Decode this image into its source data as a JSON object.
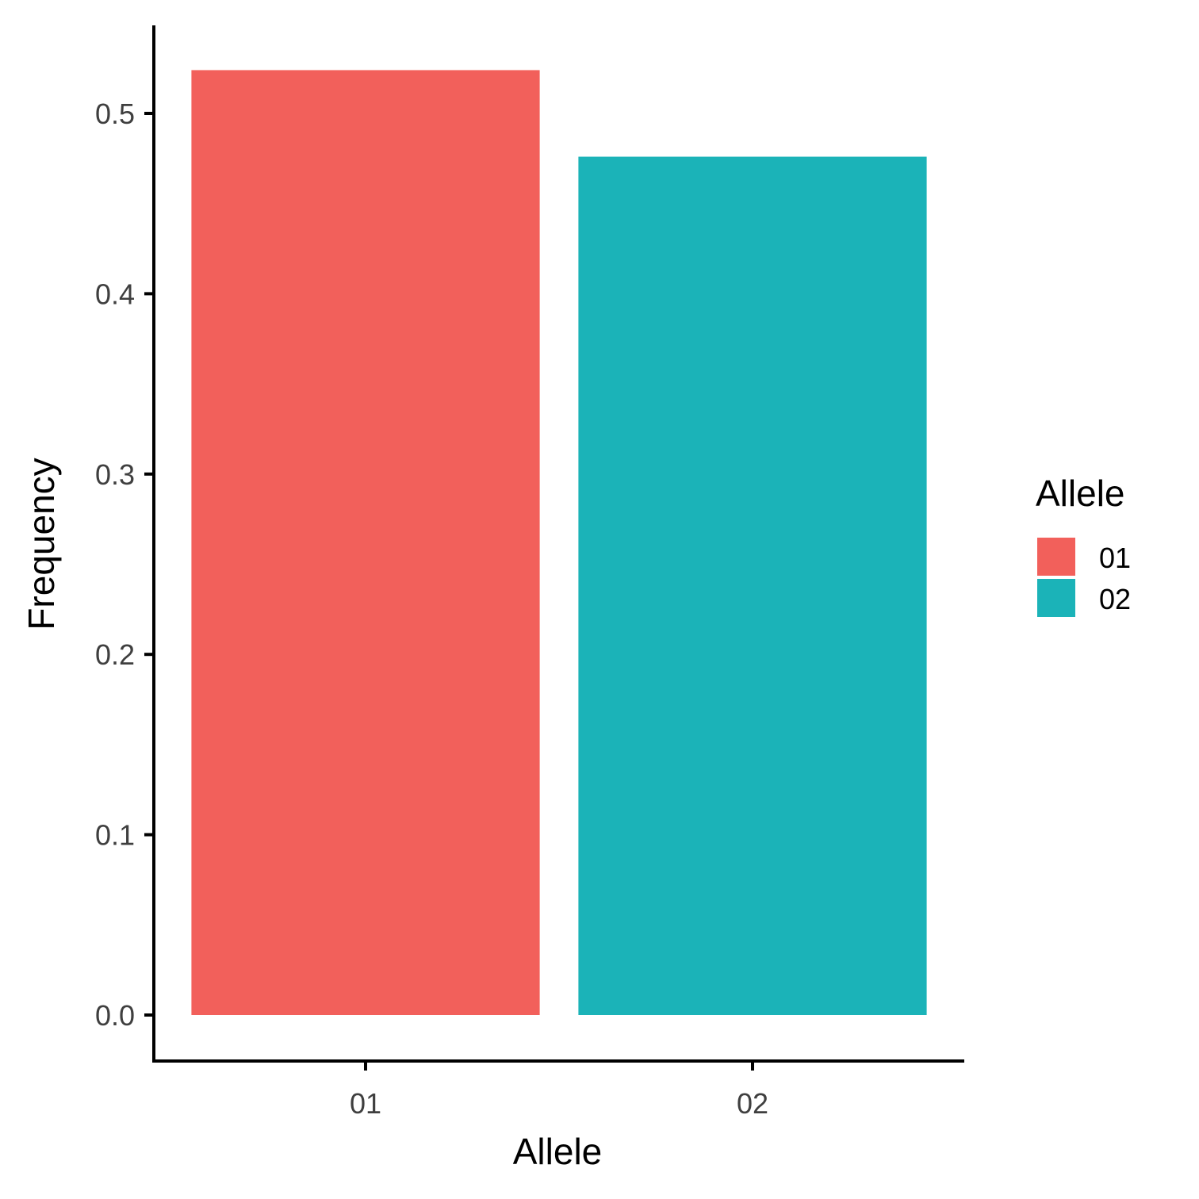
{
  "chart_data": {
    "type": "bar",
    "categories": [
      "01",
      "02"
    ],
    "values": [
      0.524,
      0.476
    ],
    "colors": [
      "#F2605B",
      "#1BB3B8"
    ],
    "xlabel": "Allele",
    "ylabel": "Frequency",
    "ylim": [
      -0.026,
      0.55
    ],
    "yticks": [
      0.0,
      0.1,
      0.2,
      0.3,
      0.4,
      0.5
    ],
    "ytick_labels": [
      "0.0",
      "0.1",
      "0.2",
      "0.3",
      "0.4",
      "0.5"
    ],
    "grid": false,
    "legend": {
      "title": "Allele",
      "position": "right",
      "entries": [
        {
          "label": "01",
          "color": "#F2605B"
        },
        {
          "label": "02",
          "color": "#1BB3B8"
        }
      ]
    }
  }
}
